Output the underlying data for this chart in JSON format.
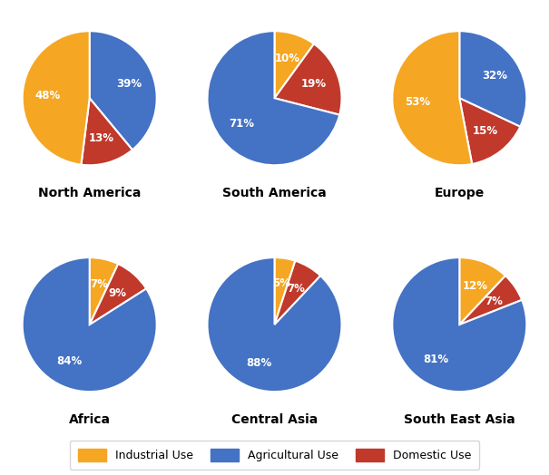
{
  "regions": [
    {
      "name": "North America",
      "vals": [
        39,
        13,
        48
      ],
      "colors_idx": [
        1,
        2,
        0
      ],
      "startangle": 90,
      "counterclock": false
    },
    {
      "name": "South America",
      "vals": [
        10,
        19,
        71
      ],
      "colors_idx": [
        0,
        2,
        1
      ],
      "startangle": 90,
      "counterclock": false
    },
    {
      "name": "Europe",
      "vals": [
        32,
        15,
        53
      ],
      "colors_idx": [
        1,
        2,
        0
      ],
      "startangle": 90,
      "counterclock": false
    },
    {
      "name": "Africa",
      "vals": [
        7,
        9,
        84
      ],
      "colors_idx": [
        0,
        2,
        1
      ],
      "startangle": 90,
      "counterclock": false
    },
    {
      "name": "Central Asia",
      "vals": [
        5,
        7,
        88
      ],
      "colors_idx": [
        0,
        2,
        1
      ],
      "startangle": 90,
      "counterclock": false
    },
    {
      "name": "South East Asia",
      "vals": [
        12,
        7,
        81
      ],
      "colors_idx": [
        0,
        2,
        1
      ],
      "startangle": 90,
      "counterclock": false
    }
  ],
  "base_colors": [
    "#F5A623",
    "#4472C4",
    "#C0392B"
  ],
  "legend_labels": [
    "Industrial Use",
    "Agricultural Use",
    "Domestic Use"
  ],
  "background_color": "#FFFFFF",
  "label_fontsize": 8.5,
  "title_fontsize": 10,
  "fig_width": 6.05,
  "fig_height": 5.24,
  "dpi": 100
}
